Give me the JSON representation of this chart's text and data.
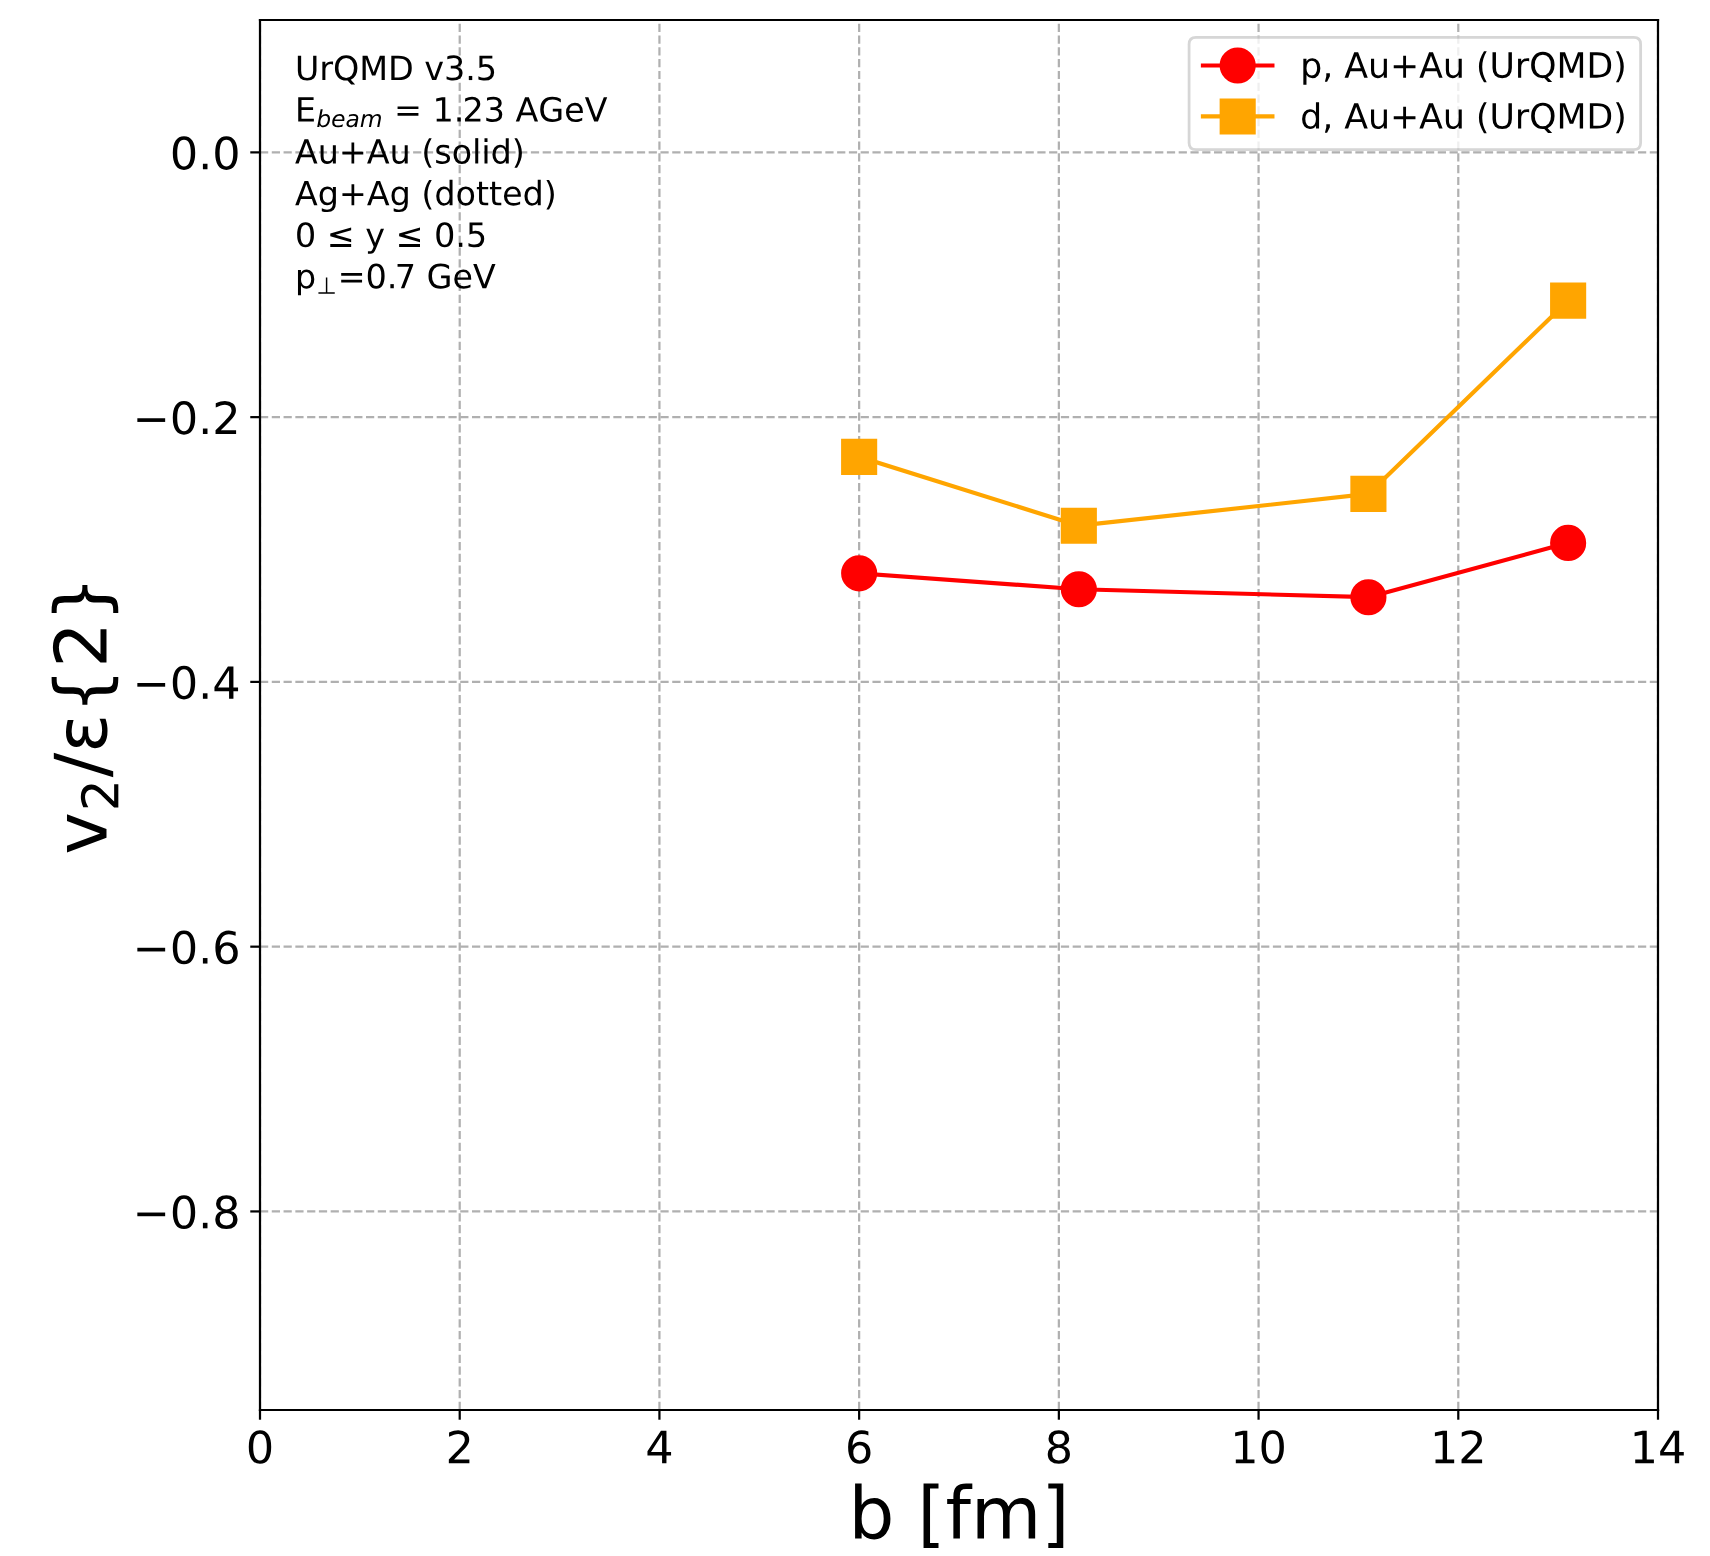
{
  "chart_data": {
    "type": "line",
    "xlabel": "b [fm]",
    "ylabel": "v$_{2}$/ε{2}",
    "annotations": [
      "UrQMD v3.5",
      "E$_{beam}$ = 1.23 AGeV",
      "Au+Au (solid)",
      "Ag+Ag (dotted)",
      "0 ≤ y ≤ 0.5",
      "p$_{⊥}$=0.7 GeV"
    ],
    "x": [
      6,
      8.2,
      11.1,
      13.1
    ],
    "series": [
      {
        "name": "p, Au+Au (UrQMD)",
        "color": "#ff0000",
        "marker": "circle",
        "values": [
          -0.318,
          -0.33,
          -0.336,
          -0.295
        ]
      },
      {
        "name": "d, Au+Au (UrQMD)",
        "color": "#ffa500",
        "marker": "square",
        "values": [
          -0.23,
          -0.282,
          -0.258,
          -0.112
        ]
      }
    ],
    "xlim": [
      0,
      14
    ],
    "xticks": [
      0,
      2,
      4,
      6,
      8,
      10,
      12,
      14
    ],
    "ylim": [
      -0.95,
      0.1
    ],
    "yticks": [
      {
        "value": -0.8,
        "label": "−0.8"
      },
      {
        "value": -0.6,
        "label": "−0.6"
      },
      {
        "value": -0.4,
        "label": "−0.4"
      },
      {
        "value": -0.2,
        "label": "−0.2"
      },
      {
        "value": 0.0,
        "label": "0.0"
      }
    ],
    "grid": true,
    "legend": "top right",
    "line_style": "solid"
  }
}
